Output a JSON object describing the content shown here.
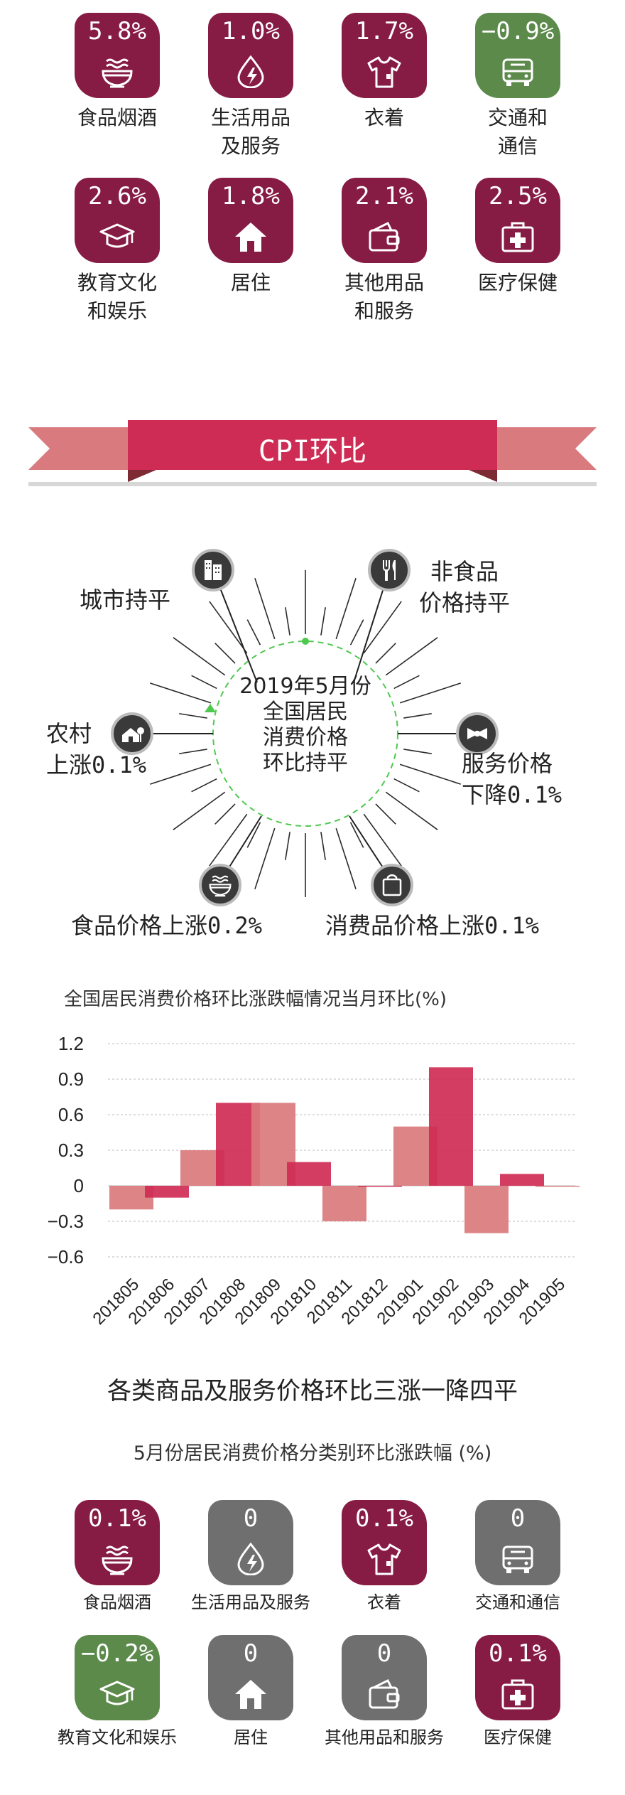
{
  "yoy_tiles": [
    {
      "value": "5.8%",
      "label": "食品烟酒",
      "label2": "",
      "color": "#861b43",
      "icon": "noodle-bowl-icon"
    },
    {
      "value": "1.0%",
      "label": "生活用品",
      "label2": "及服务",
      "color": "#861b43",
      "icon": "energy-drop-icon"
    },
    {
      "value": "1.7%",
      "label": "衣着",
      "label2": "",
      "color": "#861b43",
      "icon": "tshirt-icon"
    },
    {
      "value": "−0.9%",
      "label": "交通和",
      "label2": "通信",
      "color": "#5c8a4b",
      "icon": "bus-icon"
    },
    {
      "value": "2.6%",
      "label": "教育文化",
      "label2": "和娱乐",
      "color": "#861b43",
      "icon": "graduation-cap-icon"
    },
    {
      "value": "1.8%",
      "label": "居住",
      "label2": "",
      "color": "#861b43",
      "icon": "house-icon"
    },
    {
      "value": "2.1%",
      "label": "其他用品",
      "label2": "和服务",
      "color": "#861b43",
      "icon": "wallet-icon"
    },
    {
      "value": "2.5%",
      "label": "医疗保健",
      "label2": "",
      "color": "#861b43",
      "icon": "medical-kit-icon"
    }
  ],
  "banner": {
    "title": "CPI环比",
    "color": "#cf2c55",
    "ribbon_color": "#d97a7e"
  },
  "radial": {
    "hub": [
      "2019年5月份",
      "全国居民",
      "消费价格",
      "环比持平"
    ],
    "items": [
      {
        "line1": "城市持平",
        "line2": "",
        "icon": "city-buildings-icon"
      },
      {
        "line1": "非食品",
        "line2": "价格持平",
        "icon": "fork-knife-icon"
      },
      {
        "line1": "农村",
        "line2": "上涨0.1%",
        "icon": "rural-house-icon"
      },
      {
        "line1": "服务价格",
        "line2": "下降0.1%",
        "icon": "bow-tie-icon"
      },
      {
        "line1": "食品价格上涨0.2%",
        "line2": "",
        "icon": "noodle-bowl-icon"
      },
      {
        "line1": "消费品价格上涨0.1%",
        "line2": "",
        "icon": "shopping-bag-icon"
      }
    ]
  },
  "chart_title": "全国居民消费价格环比涨跌幅情况当月环比(%)",
  "chart_data": {
    "type": "bar",
    "title": "全国居民消费价格环比涨跌幅情况当月环比(%)",
    "categories": [
      "201805",
      "201806",
      "201807",
      "201808",
      "201809",
      "201810",
      "201811",
      "201812",
      "201901",
      "201902",
      "201903",
      "201904",
      "201905"
    ],
    "values": [
      -0.2,
      -0.1,
      0.3,
      0.7,
      0.7,
      0.2,
      -0.3,
      0.0,
      0.5,
      1.0,
      -0.4,
      0.1,
      0.0
    ],
    "ylim": [
      -0.6,
      1.2
    ],
    "yticks": [
      1.2,
      0.9,
      0.6,
      0.3,
      0,
      -0.3,
      -0.6
    ],
    "ytick_labels": [
      "1.2",
      "0.9",
      "0.6",
      "0.3",
      "0",
      "−0.3",
      "−0.6"
    ],
    "grid": true,
    "colors": {
      "light": "#d9797c",
      "dark": "#cf2c55"
    }
  },
  "section_title": "各类商品及服务价格环比三涨一降四平",
  "section_subtitle": "5月份居民消费价格分类别环比涨跌幅 (%)",
  "mom_tiles": [
    {
      "value": "0.1%",
      "label": "食品烟酒",
      "color": "#861b43",
      "icon": "noodle-bowl-icon"
    },
    {
      "value": "0",
      "label": "生活用品及服务",
      "color": "#6f6f6f",
      "icon": "energy-drop-icon"
    },
    {
      "value": "0.1%",
      "label": "衣着",
      "color": "#861b43",
      "icon": "tshirt-icon"
    },
    {
      "value": "0",
      "label": "交通和通信",
      "color": "#6f6f6f",
      "icon": "bus-icon"
    },
    {
      "value": "−0.2%",
      "label": "教育文化和娱乐",
      "color": "#5c8a4b",
      "icon": "graduation-cap-icon"
    },
    {
      "value": "0",
      "label": "居住",
      "color": "#6f6f6f",
      "icon": "house-icon"
    },
    {
      "value": "0",
      "label": "其他用品和服务",
      "color": "#6f6f6f",
      "icon": "wallet-icon"
    },
    {
      "value": "0.1%",
      "label": "医疗保健",
      "color": "#861b43",
      "icon": "medical-kit-icon"
    }
  ]
}
